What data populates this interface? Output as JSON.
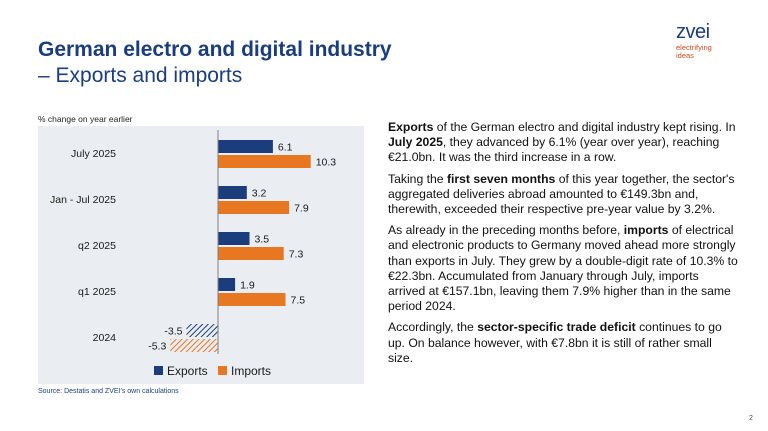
{
  "header": {
    "title_line1": "German electro and digital industry",
    "title_line2": "– Exports and imports"
  },
  "logo": {
    "wordmark": "zvei",
    "tagline_line1": "electrifying",
    "tagline_line2": "ideas"
  },
  "chart_data": {
    "type": "bar",
    "orientation": "horizontal",
    "subtitle": "% change on year earlier",
    "categories": [
      "July 2025",
      "Jan - Jul 2025",
      "q2 2025",
      "q1 2025",
      "2024"
    ],
    "series": [
      {
        "name": "Exports",
        "values": [
          6.1,
          3.2,
          3.5,
          1.9,
          -3.5
        ],
        "color": "#1b3d7d"
      },
      {
        "name": "Imports",
        "values": [
          10.3,
          7.9,
          7.3,
          7.5,
          -5.3
        ],
        "color": "#e87722"
      }
    ],
    "hatched_categories": [
      "2024"
    ],
    "xlim": [
      -6,
      12
    ],
    "legend_position": "bottom",
    "grid": false
  },
  "source_note": "Source: Destatis and ZVEI's own calculations",
  "page_number": "2",
  "paragraphs": [
    [
      {
        "t": "Exports",
        "b": true
      },
      {
        "t": " of the German electro and digital industry kept rising. In ",
        "b": false
      },
      {
        "t": "July 2025",
        "b": true
      },
      {
        "t": ", they advanced by 6.1% (year over year), reaching €21.0bn. It was the third increase in a row.",
        "b": false
      }
    ],
    [
      {
        "t": "Taking the ",
        "b": false
      },
      {
        "t": "first seven months",
        "b": true
      },
      {
        "t": " of this year together, the sector's aggregated deliveries abroad amounted to €149.3bn and, therewith, exceeded their respective pre-year value by 3.2%.",
        "b": false
      }
    ],
    [
      {
        "t": "As already in the preceding months before, ",
        "b": false
      },
      {
        "t": "imports",
        "b": true
      },
      {
        "t": " of electrical and electronic products to Germany moved ahead more strongly than exports in July. They grew by a double-digit rate of 10.3% to €22.3bn. Accumulated from January through July, imports arrived at €157.1bn, leaving them 7.9% higher than in the same period 2024.",
        "b": false
      }
    ],
    [
      {
        "t": "Accordingly, the ",
        "b": false
      },
      {
        "t": "sector-specific trade deficit",
        "b": true
      },
      {
        "t": " continues to go up. On balance however, with €7.8bn it is still of rather small size.",
        "b": false
      }
    ]
  ]
}
